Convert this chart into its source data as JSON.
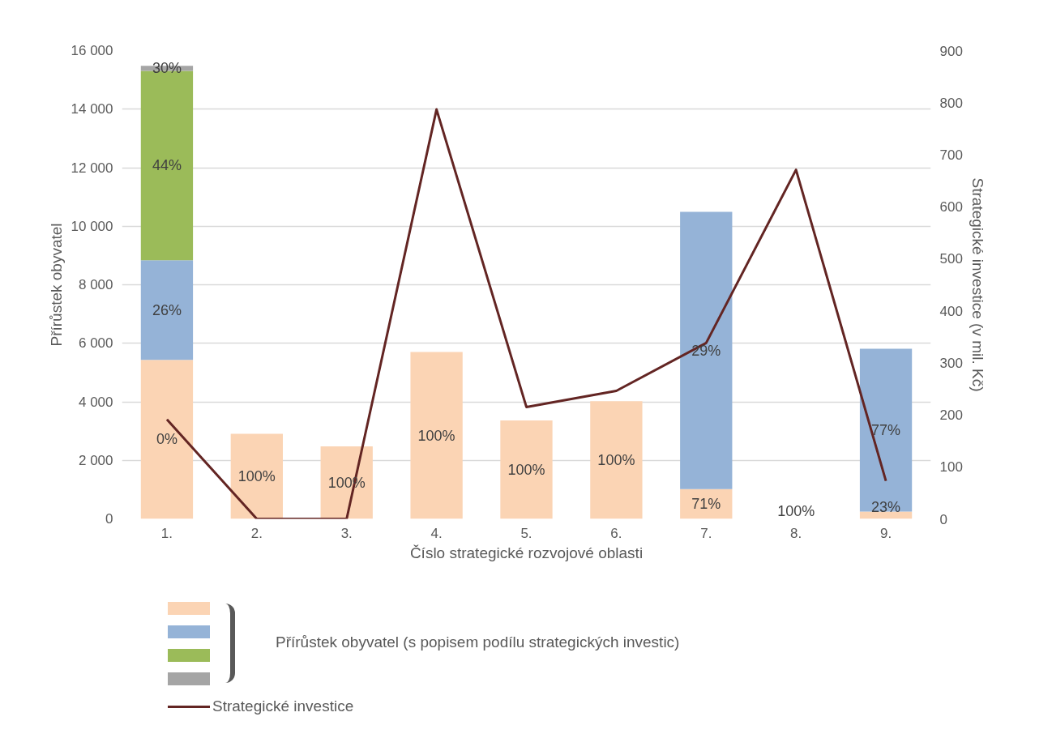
{
  "chart_data": {
    "type": "bar",
    "stacked": true,
    "xlabel": "Číslo strategické rozvojové oblasti",
    "ylabel": "Přírůstek obyvatel",
    "y2label": "Strategické investice (v mil. Kč)",
    "legend_title": "Přírůstek obyvatel (s popisem podílu strategických investic)",
    "categories": [
      "1.",
      "2.",
      "3.",
      "4.",
      "5.",
      "6.",
      "7.",
      "8.",
      "9."
    ],
    "series": [
      {
        "color": "#fbd4b4",
        "values": [
          5430,
          2910,
          2480,
          5700,
          3360,
          4020,
          1020,
          0,
          250
        ]
      },
      {
        "color": "#95b3d7",
        "values": [
          3410,
          0,
          0,
          0,
          0,
          0,
          9470,
          0,
          5560
        ]
      },
      {
        "color": "#9bbb59",
        "values": [
          6470,
          0,
          0,
          0,
          0,
          0,
          0,
          0,
          0
        ]
      },
      {
        "color": "#a5a5a5",
        "values": [
          170,
          0,
          0,
          0,
          0,
          0,
          0,
          0,
          0
        ]
      },
      {
        "name": "Strategické investice",
        "type": "line",
        "axis": "y2",
        "color": "#632523",
        "values": [
          191,
          0,
          0,
          787,
          215,
          246,
          338,
          671,
          73
        ]
      }
    ],
    "ylim": [
      0,
      16000
    ],
    "yticks": [
      {
        "value": 0,
        "label": "0"
      },
      {
        "value": 2000,
        "label": "2 000"
      },
      {
        "value": 4000,
        "label": "4 000"
      },
      {
        "value": 6000,
        "label": "6 000"
      },
      {
        "value": 8000,
        "label": "8 000"
      },
      {
        "value": 10000,
        "label": "10 000"
      },
      {
        "value": 12000,
        "label": "12 000"
      },
      {
        "value": 14000,
        "label": "14 000"
      },
      {
        "value": 16000,
        "label": "16 000"
      }
    ],
    "y2lim": [
      0,
      900
    ],
    "y2ticks": [
      0,
      100,
      200,
      300,
      400,
      500,
      600,
      700,
      800,
      900
    ],
    "grid": "y",
    "legend": "bottom",
    "marker": "none",
    "line_style": "solid",
    "annotations": [
      "0%",
      "26%",
      "44%",
      "30%",
      "100%",
      "100%",
      "100%",
      "100%",
      "100%",
      "71%",
      "29%",
      "100%",
      "23%",
      "77%"
    ]
  }
}
